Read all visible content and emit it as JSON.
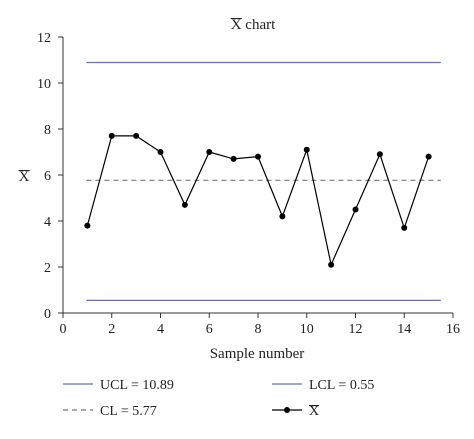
{
  "chart_data": {
    "type": "line",
    "title": "X chart",
    "title_overline_symbol": "X",
    "title_rest": " chart",
    "xlabel": "Sample number",
    "ylabel": "X",
    "xlim": [
      0,
      16
    ],
    "ylim": [
      0,
      12
    ],
    "x_ticks": [
      0,
      2,
      4,
      6,
      8,
      10,
      12,
      14,
      16
    ],
    "y_ticks": [
      0,
      2,
      4,
      6,
      8,
      10,
      12
    ],
    "grid": false,
    "legend_position": "bottom",
    "series": [
      {
        "name": "X",
        "x": [
          1,
          2,
          3,
          4,
          5,
          6,
          7,
          8,
          9,
          10,
          11,
          12,
          13,
          14,
          15
        ],
        "values": [
          3.8,
          7.7,
          7.7,
          7.0,
          4.7,
          7.0,
          6.7,
          6.8,
          4.2,
          7.1,
          2.1,
          4.5,
          6.9,
          3.7,
          6.8
        ],
        "color": "#000000",
        "marker": "circle"
      }
    ],
    "control_lines": [
      {
        "key": "ucl",
        "label": "UCL = 10.89",
        "value": 10.89,
        "color": "#6b6fae",
        "style": "solid"
      },
      {
        "key": "cl",
        "label": "CL = 5.77",
        "value": 5.77,
        "color": "#777777",
        "style": "dashed"
      },
      {
        "key": "lcl",
        "label": "LCL = 0.55",
        "value": 0.55,
        "color": "#6b6fae",
        "style": "solid"
      }
    ],
    "legend": [
      {
        "label": "UCL = 10.89",
        "style": "solid",
        "color": "#6b6fae"
      },
      {
        "label": "LCL = 0.55",
        "style": "solid",
        "color": "#6b6fae"
      },
      {
        "label": "CL = 5.77",
        "style": "dashed",
        "color": "#777777"
      },
      {
        "label": "X",
        "style": "marker-line",
        "color": "#000000",
        "overline": true
      }
    ]
  }
}
